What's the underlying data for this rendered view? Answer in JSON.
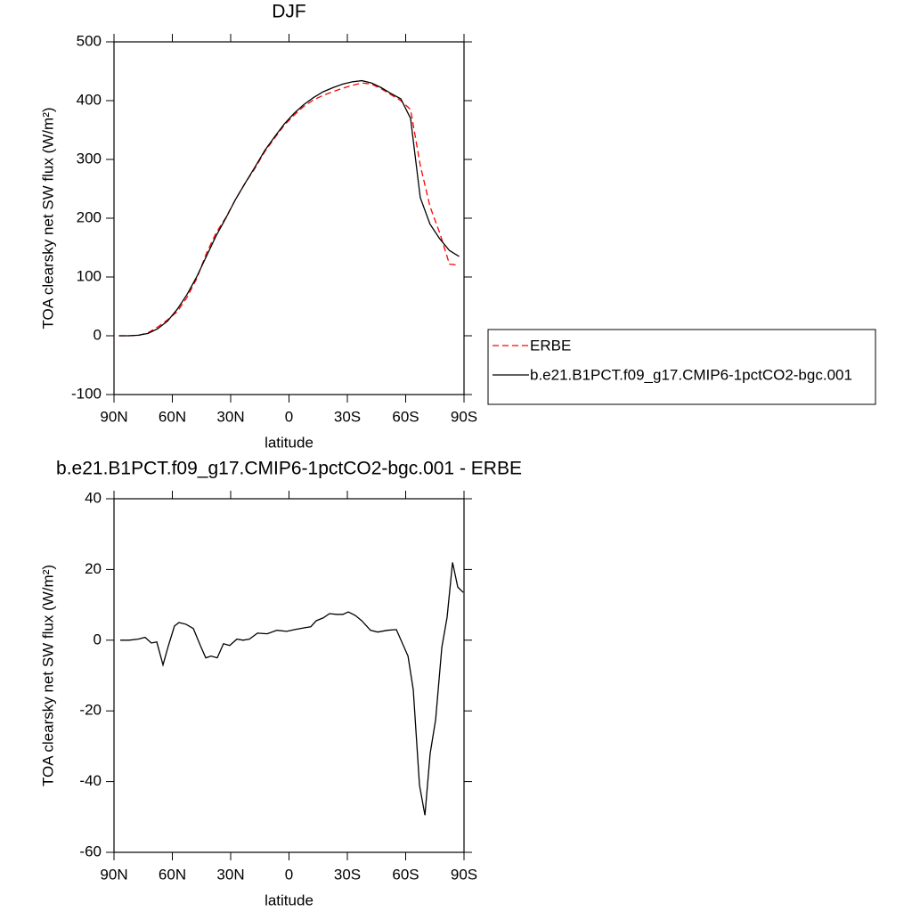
{
  "chart_data": [
    {
      "type": "line",
      "title": "DJF",
      "xlabel": "latitude",
      "ylabel": "TOA clearsky net SW flux (W/m²)",
      "x": [
        87.5,
        82.5,
        77.5,
        72.5,
        67.5,
        62.5,
        57.5,
        52.5,
        47.5,
        42.5,
        37.5,
        32.5,
        27.5,
        22.5,
        17.5,
        12.5,
        7.5,
        2.5,
        -2.5,
        -7.5,
        -12.5,
        -17.5,
        -22.5,
        -27.5,
        -32.5,
        -37.5,
        -42.5,
        -47.5,
        -52.5,
        -57.5,
        -62.5,
        -67.5,
        -72.5,
        -77.5,
        -82.5,
        -87.5
      ],
      "series": [
        {
          "name": "ERBE",
          "color": "#ff0000",
          "style": "dashed",
          "values": [
            0,
            0,
            0.5,
            5,
            15,
            27,
            41,
            65,
            97,
            140,
            175,
            201,
            232,
            260,
            285,
            313,
            336,
            358,
            375,
            390,
            401,
            409,
            415,
            421,
            426,
            430,
            428,
            420,
            410,
            400,
            385,
            290,
            220,
            175,
            122,
            120
          ]
        },
        {
          "name": "b.e21.B1PCT.f09_g17.CMIP6-1pctCO2-bgc.001",
          "color": "#000000",
          "style": "solid",
          "values": [
            0,
            0,
            1,
            4,
            12,
            25,
            45,
            70,
            100,
            135,
            170,
            200,
            232,
            260,
            287,
            315,
            338,
            360,
            378,
            393,
            405,
            415,
            422,
            428,
            432,
            434,
            430,
            422,
            412,
            403,
            370,
            235,
            190,
            165,
            145,
            135
          ]
        }
      ],
      "xlim": [
        90,
        -90
      ],
      "xticks": [
        {
          "value": 90,
          "label": "90N"
        },
        {
          "value": 60,
          "label": "60N"
        },
        {
          "value": 30,
          "label": "30N"
        },
        0,
        {
          "value": -30,
          "label": "30S"
        },
        {
          "value": -60,
          "label": "60S"
        },
        {
          "value": -90,
          "label": "90S"
        }
      ],
      "ylim": [
        -100,
        500
      ],
      "yticks": [
        -100,
        0,
        100,
        200,
        300,
        400,
        500
      ],
      "legend": "right"
    },
    {
      "type": "line",
      "title": "b.e21.B1PCT.f09_g17.CMIP6-1pctCO2-bgc.001 - ERBE",
      "xlabel": "latitude",
      "ylabel": "TOA clearsky net SW flux (W/m²)",
      "x": [
        86.8,
        82.2,
        77.6,
        74,
        70.8,
        68,
        64.8,
        62,
        58.9,
        56.6,
        53,
        49.2,
        45.6,
        42.8,
        40.1,
        36.9,
        33.7,
        30.5,
        26.8,
        23.6,
        20.4,
        16.2,
        11.2,
        6.2,
        1.2,
        -3,
        -8,
        -11.2,
        -14,
        -17.6,
        -20.8,
        -24.5,
        -27.7,
        -30.5,
        -34.1,
        -37.4,
        -41.9,
        -45.6,
        -50.6,
        -55.2,
        -61.2,
        -63.9,
        -67.1,
        -69.9,
        -72.6,
        -75.4,
        -78.6,
        -81.3,
        -84.1,
        -86.8,
        -89.6
      ],
      "values": [
        0,
        0,
        0.3,
        0.8,
        -0.8,
        -0.5,
        -7,
        -1.5,
        4,
        5,
        4.5,
        3.3,
        -1.5,
        -5,
        -4.5,
        -5,
        -1,
        -1.5,
        0.3,
        0,
        0.3,
        2,
        1.8,
        2.8,
        2.5,
        3,
        3.5,
        3.8,
        5.5,
        6.3,
        7.5,
        7.3,
        7.3,
        8,
        7,
        5.5,
        2.8,
        2.3,
        2.8,
        3,
        -4.5,
        -14,
        -41,
        -49.5,
        -32,
        -22.5,
        -2,
        6.5,
        22,
        15,
        13.5
      ],
      "color": "#000000",
      "xlim": [
        90,
        -90
      ],
      "xticks": [
        {
          "value": 90,
          "label": "90N"
        },
        {
          "value": 60,
          "label": "60N"
        },
        {
          "value": 30,
          "label": "30N"
        },
        0,
        {
          "value": -30,
          "label": "30S"
        },
        {
          "value": -60,
          "label": "60S"
        },
        {
          "value": -90,
          "label": "90S"
        }
      ],
      "ylim": [
        -60,
        40
      ],
      "yticks": [
        -60,
        -40,
        -20,
        0,
        20,
        40
      ]
    }
  ]
}
